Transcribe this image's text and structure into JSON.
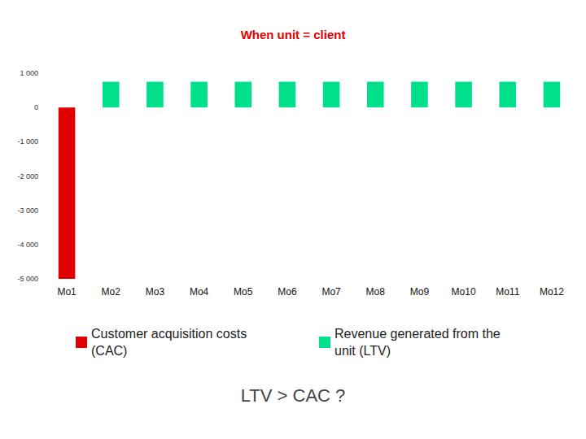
{
  "chart_data": {
    "type": "bar",
    "title": "When unit = client",
    "annotation": "LTV > CAC ?",
    "categories": [
      "Mo1",
      "Mo2",
      "Mo3",
      "Mo4",
      "Mo5",
      "Mo6",
      "Mo7",
      "Mo8",
      "Mo9",
      "Mo10",
      "Mo11",
      "Mo12"
    ],
    "series": [
      {
        "name": "Customer acquisition costs (CAC)",
        "color": "#e00000",
        "values": [
          -5000,
          null,
          null,
          null,
          null,
          null,
          null,
          null,
          null,
          null,
          null,
          null
        ]
      },
      {
        "name": "Revenue generated from the unit (LTV)",
        "color": "#00e08a",
        "values": [
          null,
          750,
          750,
          750,
          750,
          750,
          750,
          750,
          750,
          750,
          750,
          750
        ]
      }
    ],
    "ylim": [
      -5000,
      1000
    ],
    "yticks": [
      {
        "value": 1000,
        "label": "1 000"
      },
      0,
      {
        "value": -1000,
        "label": "-1 000"
      },
      {
        "value": -2000,
        "label": "-2 000"
      },
      {
        "value": -3000,
        "label": "-3 000"
      },
      {
        "value": -4000,
        "label": "-4 000"
      },
      {
        "value": -5000,
        "label": "-5 000"
      }
    ],
    "grid": false,
    "legend": "bottom"
  }
}
